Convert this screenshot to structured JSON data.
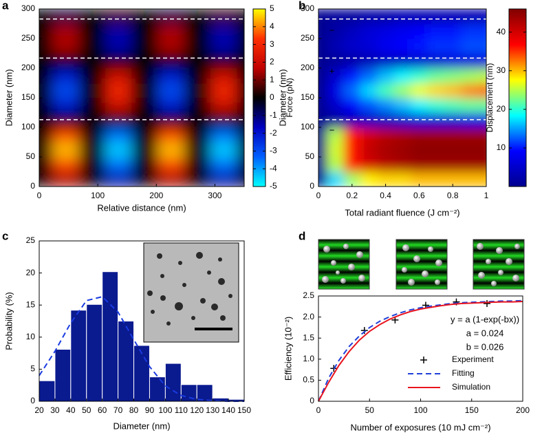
{
  "chart_data": [
    {
      "type": "heatmap",
      "label": "a",
      "xlabel": "Relative distance (nm)",
      "ylabel": "Diameter (nm)",
      "xlim": [
        0,
        350
      ],
      "ylim": [
        0,
        300
      ],
      "xticks": [
        0,
        100,
        200,
        300
      ],
      "yticks": [
        0,
        50,
        100,
        150,
        200,
        250,
        300
      ],
      "x": [
        0,
        45,
        90,
        135,
        180,
        225,
        270,
        315,
        360
      ],
      "y": [
        12.5,
        37.5,
        62.5,
        87.5,
        112.5,
        137.5,
        162.5,
        187.5,
        212.5,
        237.5,
        262.5,
        287.5
      ],
      "z": [
        [
          0,
          1.5,
          0,
          -1.5,
          0,
          1.5,
          0,
          -1.5,
          0
        ],
        [
          0,
          3.5,
          0,
          -3.5,
          0,
          3.5,
          0,
          -3.5,
          0
        ],
        [
          0,
          4.5,
          0,
          -4.5,
          0,
          4.5,
          0,
          -4.5,
          0
        ],
        [
          0,
          3.5,
          0,
          -3.5,
          0,
          3.5,
          0,
          -3.5,
          0
        ],
        [
          0,
          0,
          0,
          0,
          0,
          0,
          0,
          0,
          0
        ],
        [
          0,
          -2,
          0,
          2,
          0,
          -2,
          0,
          2,
          0
        ],
        [
          0,
          -3,
          0,
          3,
          0,
          -3,
          0,
          3,
          0
        ],
        [
          0,
          -2,
          0,
          2,
          0,
          -2,
          0,
          2,
          0
        ],
        [
          0,
          0,
          0,
          0,
          0,
          0,
          0,
          0,
          0
        ],
        [
          0,
          1.5,
          0,
          -1.5,
          0,
          1.5,
          0,
          -1.5,
          0
        ],
        [
          0,
          1.5,
          0,
          -1.5,
          0,
          1.5,
          0,
          -1.5,
          0
        ],
        [
          0,
          -0.5,
          0,
          0.5,
          0,
          -0.5,
          0,
          0.5,
          0
        ]
      ],
      "hlines": [
        113,
        217,
        283
      ],
      "hline_color": "#ffffff",
      "colorbar": {
        "label": "Force (pN)",
        "lim": [
          -5,
          5
        ],
        "ticks": [
          -5,
          -4,
          -3,
          -2,
          -1,
          0,
          1,
          2,
          3,
          4,
          5
        ],
        "colors": [
          "#00ffff",
          "#0060ff",
          "#0000c0",
          "#000000",
          "#c00000",
          "#ff3000",
          "#ffff00"
        ]
      }
    },
    {
      "type": "heatmap",
      "label": "b",
      "xlabel": "Total radiant fluence (J cm⁻²)",
      "ylabel": "Diameter (nm)",
      "xlim": [
        0,
        1
      ],
      "ylim": [
        0,
        300
      ],
      "xticks": [
        0,
        0.2,
        0.4,
        0.6,
        0.8,
        1
      ],
      "yticks": [
        0,
        50,
        100,
        150,
        200,
        250,
        300
      ],
      "x": [
        0,
        0.1,
        0.2,
        0.3,
        0.4,
        0.5,
        0.6,
        0.7,
        0.8,
        0.9,
        1
      ],
      "y": [
        12.5,
        37.5,
        62.5,
        87.5,
        112.5,
        137.5,
        162.5,
        187.5,
        212.5,
        237.5,
        262.5,
        287.5
      ],
      "z": [
        [
          0,
          17,
          24,
          28,
          29,
          29,
          30,
          30,
          30,
          30,
          30
        ],
        [
          0,
          25,
          36,
          40,
          42,
          43,
          44,
          44,
          44,
          44,
          44
        ],
        [
          0,
          26,
          36,
          41,
          43,
          44,
          45,
          45,
          45,
          45,
          45
        ],
        [
          0,
          25,
          36,
          40,
          42,
          43,
          44,
          44,
          44,
          44,
          44
        ],
        [
          0,
          1,
          3,
          4,
          4,
          5,
          6,
          6,
          6,
          7,
          7
        ],
        [
          0,
          5,
          9,
          12,
          14,
          16,
          18,
          20,
          21,
          22,
          22
        ],
        [
          0,
          7,
          13,
          17,
          21,
          24,
          27,
          29,
          30,
          32,
          33
        ],
        [
          0,
          5,
          10,
          13,
          16,
          18,
          20,
          22,
          23,
          24,
          25
        ],
        [
          0,
          1,
          2,
          3,
          4,
          4,
          5,
          5,
          6,
          6,
          6
        ],
        [
          0,
          3,
          5,
          6,
          8,
          9,
          10,
          11,
          11,
          12,
          12
        ],
        [
          0,
          2,
          4,
          6,
          7,
          8,
          9,
          10,
          10,
          11,
          11
        ],
        [
          0,
          1,
          1,
          2,
          2,
          3,
          3,
          3,
          3,
          3,
          3
        ]
      ],
      "hlines": [
        113,
        217,
        283
      ],
      "hline_color": "#ffffff",
      "annotations": [
        {
          "text": "−",
          "x": 0.08,
          "y": 263,
          "color": "#ffffff"
        },
        {
          "text": "+",
          "x": 0.08,
          "y": 194,
          "color": "#ffffff"
        },
        {
          "text": "−",
          "x": 0.08,
          "y": 94,
          "color": "#ffffff"
        }
      ],
      "colorbar": {
        "label": "Displacement (nm)",
        "lim": [
          0,
          46
        ],
        "ticks": [
          10,
          20,
          30,
          40
        ],
        "colors": [
          "#00008f",
          "#0000ff",
          "#00ffff",
          "#ffff00",
          "#ff0000",
          "#800000"
        ]
      }
    },
    {
      "type": "histogram",
      "label": "c",
      "xlabel": "Diameter (nm)",
      "ylabel": "Probability (%)",
      "xlim": [
        20,
        150
      ],
      "ylim": [
        0,
        25
      ],
      "xticks": [
        20,
        30,
        40,
        50,
        60,
        70,
        80,
        90,
        100,
        110,
        120,
        130,
        140,
        150
      ],
      "yticks": [
        0,
        5,
        10,
        15,
        20,
        25
      ],
      "bins": [
        20,
        30,
        40,
        50,
        60,
        70,
        80,
        90,
        100,
        110,
        120,
        130,
        140,
        150
      ],
      "values": [
        3.2,
        8.1,
        14.2,
        15.1,
        20.2,
        12.5,
        8.7,
        3.8,
        5.9,
        2.6,
        2.6,
        0.5,
        0.3
      ],
      "color": "#0a1a8f",
      "fit": {
        "x": [
          20,
          30,
          40,
          50,
          60,
          70,
          80,
          90,
          100,
          110,
          120,
          130,
          140,
          150
        ],
        "values": [
          4.0,
          7.8,
          12.2,
          15.7,
          16.3,
          13.9,
          9.6,
          5.4,
          2.4,
          0.9,
          0.3,
          0.1,
          0,
          0
        ],
        "color": "#1a3be0",
        "dash": true
      }
    },
    {
      "type": "line",
      "label": "d",
      "xlabel": "Number of exposures (10 mJ cm⁻²)",
      "ylabel": "Efficiency (10⁻²)",
      "xlim": [
        0,
        200
      ],
      "ylim": [
        0,
        2.5
      ],
      "xticks": [
        0,
        50,
        100,
        150,
        200
      ],
      "yticks": [
        0,
        0.5,
        {
          "value": 1,
          "label": "1.0"
        },
        1.5,
        {
          "value": 2,
          "label": "2.0"
        },
        2.5
      ],
      "series": [
        {
          "name": "Experiment",
          "color": "#000000",
          "marker": "plus",
          "x": [
            15,
            45,
            75,
            105,
            135,
            165
          ],
          "values": [
            0.78,
            1.68,
            1.93,
            2.28,
            2.36,
            2.32
          ]
        },
        {
          "name": "Fitting",
          "color": "#1f3fd8",
          "dash": true,
          "x": [
            0,
            10,
            20,
            30,
            40,
            50,
            60,
            70,
            80,
            90,
            100,
            110,
            120,
            130,
            140,
            150,
            160,
            170,
            180,
            190,
            200
          ],
          "values": [
            0,
            0.55,
            0.97,
            1.3,
            1.55,
            1.75,
            1.9,
            2.01,
            2.1,
            2.17,
            2.22,
            2.26,
            2.29,
            2.32,
            2.34,
            2.35,
            2.36,
            2.37,
            2.38,
            2.38,
            2.39
          ]
        },
        {
          "name": "Simulation",
          "color": "#e8141e",
          "x": [
            0,
            10,
            20,
            30,
            40,
            50,
            60,
            70,
            80,
            90,
            100,
            110,
            120,
            130,
            140,
            150,
            160,
            170,
            180,
            190,
            200
          ],
          "values": [
            0,
            0.45,
            0.85,
            1.18,
            1.45,
            1.66,
            1.82,
            1.95,
            2.05,
            2.13,
            2.19,
            2.23,
            2.27,
            2.3,
            2.32,
            2.33,
            2.34,
            2.35,
            2.36,
            2.36,
            2.37
          ]
        }
      ],
      "legend": "lower right",
      "annotations": [
        {
          "text": "y = a (1-exp(-bx))",
          "x": 163,
          "y": 1.93,
          "color": "#000000"
        },
        {
          "text": "a = 0.024",
          "x": 163,
          "y": 1.6,
          "color": "#000000"
        },
        {
          "text": "b = 0.026",
          "x": 163,
          "y": 1.27,
          "color": "#000000"
        }
      ]
    }
  ]
}
